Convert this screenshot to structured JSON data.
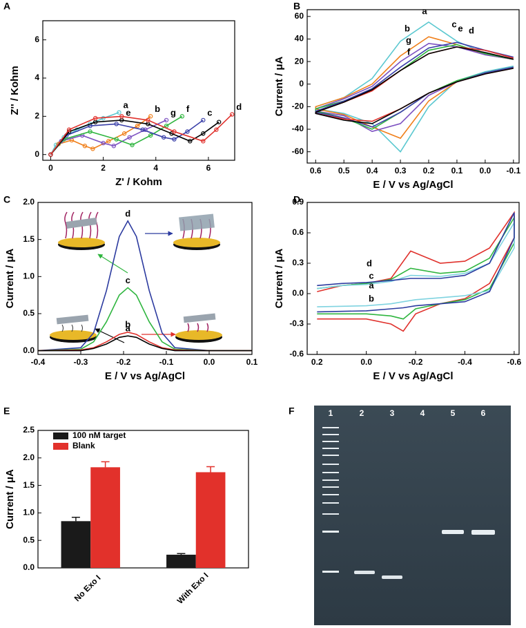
{
  "chart_data": [
    {
      "panel": "A",
      "type": "line",
      "markers": true,
      "xlabel": "Z' / Kohm",
      "ylabel": "Z'' / Kohm",
      "xlim": [
        -0.3,
        7
      ],
      "ylim": [
        -0.3,
        7
      ],
      "xticks": [
        0,
        2,
        4,
        6
      ],
      "yticks": [
        0,
        2,
        4,
        6
      ],
      "series": [
        {
          "name": "a",
          "color": "#5bc8d0",
          "x": [
            0,
            0.2,
            0.5,
            1,
            1.5,
            2,
            2.6
          ],
          "values": [
            0,
            0.5,
            0.9,
            1.3,
            1.6,
            1.9,
            2.2
          ]
        },
        {
          "name": "b",
          "color": "#f07f1a",
          "x": [
            0,
            0.3,
            0.8,
            1.3,
            1.6,
            2.2,
            2.8,
            3.3,
            3.8
          ],
          "values": [
            0,
            0.55,
            0.75,
            0.45,
            0.3,
            0.7,
            1.1,
            1.5,
            2.0
          ]
        },
        {
          "name": "g",
          "color": "#7b4fc0",
          "x": [
            0,
            0.4,
            1.2,
            2.0,
            2.4,
            3,
            3.6,
            4.4
          ],
          "values": [
            0,
            0.7,
            1.0,
            0.6,
            0.45,
            0.9,
            1.3,
            1.8
          ]
        },
        {
          "name": "f",
          "color": "#2fb53f",
          "x": [
            0,
            0.5,
            1.5,
            2.5,
            3.1,
            3.8,
            4.4,
            5.0
          ],
          "values": [
            0,
            0.8,
            1.2,
            0.8,
            0.5,
            1.0,
            1.5,
            2.0
          ]
        },
        {
          "name": "c",
          "color": "#3a3fa8",
          "x": [
            0,
            0.6,
            1.5,
            2.5,
            3.5,
            4.3,
            4.7,
            5.2,
            5.8
          ],
          "values": [
            0,
            1.0,
            1.5,
            1.6,
            1.3,
            0.9,
            0.8,
            1.2,
            1.8
          ]
        },
        {
          "name": "e",
          "color": "#000000",
          "x": [
            0,
            0.7,
            1.7,
            2.7,
            3.7,
            4.6,
            5.3,
            5.8,
            6.4
          ],
          "values": [
            0,
            1.2,
            1.7,
            1.8,
            1.6,
            1.1,
            0.7,
            1.1,
            1.7
          ]
        },
        {
          "name": "d",
          "color": "#e0312c",
          "x": [
            0,
            0.7,
            1.7,
            2.7,
            3.7,
            4.7,
            5.8,
            6.3,
            6.9
          ],
          "values": [
            0,
            1.3,
            1.9,
            2.0,
            1.8,
            1.2,
            0.7,
            1.3,
            2.1
          ]
        }
      ]
    },
    {
      "panel": "B",
      "type": "line",
      "xlabel": "E / V vs Ag/AgCl",
      "ylabel": "Current / μA",
      "xlim": [
        0.63,
        -0.12
      ],
      "ylim": [
        -70,
        66
      ],
      "xticks": [
        0.6,
        0.5,
        0.4,
        0.3,
        0.2,
        0.1,
        {
          "value": 0,
          "label": "0.0"
        },
        -0.1
      ],
      "yticks": [
        -60,
        -40,
        -20,
        0,
        20,
        40,
        60
      ],
      "series": [
        {
          "name": "a",
          "color": "#5bc8d0",
          "x": [
            -0.1,
            0,
            0.1,
            0.2,
            0.3,
            0.4,
            0.5,
            0.6,
            0.6,
            0.5,
            0.4,
            0.3,
            0.2,
            0.1,
            0,
            -0.1
          ],
          "values": [
            22,
            27,
            38,
            55,
            38,
            5,
            -12,
            -20,
            -22,
            -26,
            -35,
            -60,
            -20,
            3,
            11,
            16
          ]
        },
        {
          "name": "b",
          "color": "#f07f1a",
          "x": [
            -0.1,
            0,
            0.1,
            0.2,
            0.3,
            0.4,
            0.5,
            0.6,
            0.6,
            0.5,
            0.4,
            0.3,
            0.2,
            0.1,
            0,
            -0.1
          ],
          "values": [
            22,
            26,
            35,
            42,
            25,
            0,
            -12,
            -20,
            -22,
            -27,
            -38,
            -48,
            -15,
            2,
            10,
            15
          ]
        },
        {
          "name": "g",
          "color": "#7b4fc0",
          "x": [
            -0.1,
            0,
            0.1,
            0.2,
            0.3,
            0.4,
            0.5,
            0.6,
            0.6,
            0.5,
            0.4,
            0.3,
            0.2,
            0.1,
            0,
            -0.1
          ],
          "values": [
            22,
            26,
            33,
            36,
            20,
            -2,
            -13,
            -22,
            -24,
            -28,
            -42,
            -35,
            -10,
            2,
            10,
            15
          ]
        },
        {
          "name": "f",
          "color": "#2fb53f",
          "x": [
            -0.1,
            0,
            0.1,
            0.2,
            0.3,
            0.4,
            0.5,
            0.6,
            0.6,
            0.5,
            0.4,
            0.3,
            0.2,
            0.1,
            0,
            -0.1
          ],
          "values": [
            22,
            27,
            35,
            30,
            12,
            -5,
            -15,
            -22,
            -24,
            -30,
            -40,
            -25,
            -8,
            3,
            10,
            15
          ]
        },
        {
          "name": "c",
          "color": "#3a3fa8",
          "x": [
            -0.1,
            0,
            0.1,
            0.2,
            0.3,
            0.4,
            0.5,
            0.6,
            0.6,
            0.5,
            0.4,
            0.3,
            0.2,
            0.1,
            0,
            -0.1
          ],
          "values": [
            24,
            30,
            37,
            32,
            15,
            -4,
            -15,
            -24,
            -25,
            -30,
            -38,
            -25,
            -8,
            2,
            10,
            15
          ]
        },
        {
          "name": "e",
          "color": "#e0312c",
          "x": [
            -0.1,
            0,
            0.1,
            0.2,
            0.3,
            0.4,
            0.5,
            0.6,
            0.6,
            0.5,
            0.4,
            0.3,
            0.2,
            0.1,
            0,
            -0.1
          ],
          "values": [
            23,
            30,
            33,
            27,
            12,
            -6,
            -16,
            -25,
            -26,
            -31,
            -33,
            -22,
            -8,
            2,
            9,
            14
          ]
        },
        {
          "name": "d",
          "color": "#000000",
          "x": [
            -0.1,
            0,
            0.1,
            0.2,
            0.3,
            0.4,
            0.5,
            0.6,
            0.6,
            0.5,
            0.4,
            0.3,
            0.2,
            0.1,
            0,
            -0.1
          ],
          "values": [
            22,
            28,
            33,
            27,
            12,
            -5,
            -16,
            -25,
            -26,
            -32,
            -35,
            -22,
            -8,
            2,
            9,
            14
          ]
        }
      ]
    },
    {
      "panel": "C",
      "type": "line",
      "xlabel": "E / V vs Ag/AgCl",
      "ylabel": "Current / μA",
      "xlim": [
        -0.4,
        0.1
      ],
      "ylim": [
        -0.05,
        2.0
      ],
      "xticks": [
        -0.4,
        -0.3,
        -0.2,
        -0.1,
        {
          "value": 0,
          "label": "0.0"
        },
        0.1
      ],
      "yticks": [
        {
          "value": 0,
          "label": "0.0"
        },
        0.5,
        {
          "value": 1,
          "label": "1.0"
        },
        1.5,
        {
          "value": 2,
          "label": "2.0"
        }
      ],
      "series": [
        {
          "name": "d",
          "color": "#2b3a9f",
          "x": [
            -0.4,
            -0.3,
            -0.27,
            -0.24,
            -0.21,
            -0.19,
            -0.17,
            -0.14,
            -0.11,
            -0.08,
            0,
            0.1
          ],
          "values": [
            0,
            0.04,
            0.24,
            0.81,
            1.54,
            1.75,
            1.54,
            0.81,
            0.24,
            0.04,
            0,
            0
          ]
        },
        {
          "name": "c",
          "color": "#2fb53f",
          "x": [
            -0.4,
            -0.3,
            -0.27,
            -0.24,
            -0.21,
            -0.19,
            -0.17,
            -0.14,
            -0.11,
            -0.08,
            0,
            0.1
          ],
          "values": [
            0,
            0.02,
            0.12,
            0.39,
            0.75,
            0.85,
            0.75,
            0.39,
            0.12,
            0.02,
            0,
            0
          ]
        },
        {
          "name": "b",
          "color": "#e0312c",
          "x": [
            -0.4,
            -0.3,
            -0.27,
            -0.24,
            -0.21,
            -0.19,
            -0.17,
            -0.14,
            -0.11,
            -0.08,
            0,
            0.1
          ],
          "values": [
            0,
            0.01,
            0.04,
            0.12,
            0.22,
            0.25,
            0.22,
            0.12,
            0.04,
            0.01,
            0,
            0
          ]
        },
        {
          "name": "a",
          "color": "#000000",
          "x": [
            -0.4,
            -0.3,
            -0.27,
            -0.24,
            -0.21,
            -0.19,
            -0.17,
            -0.14,
            -0.11,
            -0.08,
            0,
            0.1
          ],
          "values": [
            0,
            0,
            0.03,
            0.09,
            0.18,
            0.2,
            0.18,
            0.09,
            0.03,
            0,
            0,
            0
          ]
        }
      ]
    },
    {
      "panel": "D",
      "type": "line",
      "xlabel": "E / V vs Ag/AgCl",
      "ylabel": "Current / μA",
      "xlim": [
        0.24,
        -0.62
      ],
      "ylim": [
        -0.6,
        0.9
      ],
      "xticks": [
        0.2,
        {
          "value": 0,
          "label": "0.0"
        },
        -0.2,
        -0.4,
        -0.6
      ],
      "yticks": [
        -0.6,
        -0.3,
        {
          "value": 0,
          "label": "0.0"
        },
        0.3,
        0.6,
        0.9
      ],
      "series": [
        {
          "name": "d",
          "color": "#e0312c",
          "x": [
            0.2,
            0.1,
            0,
            -0.1,
            -0.18,
            -0.3,
            -0.4,
            -0.5,
            -0.6,
            -0.6,
            -0.5,
            -0.4,
            -0.3,
            -0.2,
            -0.15,
            -0.1,
            0,
            0.2
          ],
          "values": [
            0.02,
            0.08,
            0.1,
            0.15,
            0.42,
            0.3,
            0.32,
            0.45,
            0.8,
            0.55,
            0.1,
            -0.05,
            -0.1,
            -0.2,
            -0.37,
            -0.3,
            -0.25,
            -0.25
          ]
        },
        {
          "name": "c",
          "color": "#2fb53f",
          "x": [
            0.2,
            0.1,
            0,
            -0.1,
            -0.18,
            -0.3,
            -0.4,
            -0.5,
            -0.6,
            -0.6,
            -0.5,
            -0.4,
            -0.3,
            -0.2,
            -0.15,
            -0.1,
            0,
            0.2
          ],
          "values": [
            0.05,
            0.08,
            0.1,
            0.14,
            0.25,
            0.2,
            0.22,
            0.35,
            0.75,
            0.5,
            0.05,
            -0.06,
            -0.1,
            -0.15,
            -0.25,
            -0.22,
            -0.2,
            -0.2
          ]
        },
        {
          "name": "a",
          "color": "#7fd3e0",
          "x": [
            0.2,
            0.1,
            0,
            -0.1,
            -0.18,
            -0.3,
            -0.4,
            -0.5,
            -0.6,
            -0.6,
            -0.5,
            -0.4,
            -0.3,
            -0.2,
            -0.15,
            -0.1,
            0,
            0.2
          ],
          "values": [
            0.05,
            0.08,
            0.09,
            0.12,
            0.18,
            0.17,
            0.2,
            0.3,
            0.7,
            0.45,
            0.03,
            -0.02,
            -0.04,
            -0.06,
            -0.08,
            -0.1,
            -0.12,
            -0.13
          ]
        },
        {
          "name": "b",
          "color": "#2b3a9f",
          "x": [
            0.2,
            0.1,
            0,
            -0.1,
            -0.18,
            -0.3,
            -0.4,
            -0.5,
            -0.6,
            -0.6,
            -0.5,
            -0.4,
            -0.3,
            -0.2,
            -0.15,
            -0.1,
            0,
            0.2
          ],
          "values": [
            0.08,
            0.1,
            0.11,
            0.13,
            0.15,
            0.15,
            0.18,
            0.3,
            0.8,
            0.55,
            0.02,
            -0.08,
            -0.1,
            -0.12,
            -0.14,
            -0.15,
            -0.17,
            -0.18
          ]
        }
      ]
    },
    {
      "panel": "E",
      "type": "bar",
      "ylabel": "Current / μA",
      "categories": [
        "No Exo I",
        "With Exo I"
      ],
      "ylim": [
        0,
        2.5
      ],
      "yticks": [
        {
          "value": 0,
          "label": "0.0"
        },
        0.5,
        {
          "value": 1,
          "label": "1.0"
        },
        1.5,
        {
          "value": 2,
          "label": "2.0"
        },
        2.5
      ],
      "series": [
        {
          "name": "100 nM target",
          "color": "#1a1a1a",
          "values": [
            0.85,
            0.24
          ],
          "errors": [
            0.07,
            0.02
          ]
        },
        {
          "name": "Blank",
          "color": "#e2312b",
          "values": [
            1.83,
            1.74
          ],
          "errors": [
            0.1,
            0.1
          ]
        }
      ]
    }
  ],
  "gel": {
    "panel": "F",
    "lanes": [
      "1",
      "2",
      "3",
      "4",
      "5",
      "6"
    ]
  }
}
